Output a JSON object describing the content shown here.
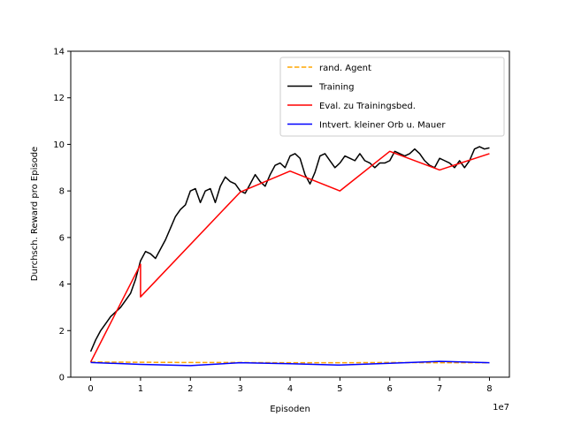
{
  "chart_data": {
    "type": "line",
    "title": "",
    "xlabel": "Episoden",
    "ylabel": "Durchsch. Reward pro Episode",
    "x_offset_label": "1e7",
    "xlim": [
      -4000000,
      84000000
    ],
    "ylim": [
      0,
      14
    ],
    "x_ticks": [
      0,
      10000000,
      20000000,
      30000000,
      40000000,
      50000000,
      60000000,
      70000000,
      80000000
    ],
    "x_tick_labels": [
      "0",
      "1",
      "2",
      "3",
      "4",
      "5",
      "6",
      "7",
      "8"
    ],
    "y_ticks": [
      0,
      2,
      4,
      6,
      8,
      10,
      12,
      14
    ],
    "y_tick_labels": [
      "0",
      "2",
      "4",
      "6",
      "8",
      "10",
      "12",
      "14"
    ],
    "grid": false,
    "legend_position": "upper-right",
    "series": [
      {
        "name": "rand. Agent",
        "color": "#ffa500",
        "style": "dashed",
        "x": [
          0,
          10000000,
          20000000,
          30000000,
          40000000,
          50000000,
          60000000,
          70000000,
          80000000
        ],
        "y": [
          0.65,
          0.64,
          0.63,
          0.63,
          0.62,
          0.62,
          0.63,
          0.62,
          0.62
        ]
      },
      {
        "name": "Training",
        "color": "#000000",
        "style": "solid",
        "x": [
          0,
          1000000,
          2000000,
          3000000,
          4000000,
          5000000,
          6000000,
          7000000,
          8000000,
          9000000,
          10000000,
          11000000,
          12000000,
          13000000,
          14000000,
          15000000,
          16000000,
          17000000,
          18000000,
          19000000,
          20000000,
          21000000,
          22000000,
          23000000,
          24000000,
          25000000,
          26000000,
          27000000,
          28000000,
          29000000,
          30000000,
          31000000,
          32000000,
          33000000,
          34000000,
          35000000,
          36000000,
          37000000,
          38000000,
          39000000,
          40000000,
          41000000,
          42000000,
          43000000,
          44000000,
          45000000,
          46000000,
          47000000,
          48000000,
          49000000,
          50000000,
          51000000,
          52000000,
          53000000,
          54000000,
          55000000,
          56000000,
          57000000,
          58000000,
          59000000,
          60000000,
          61000000,
          62000000,
          63000000,
          64000000,
          65000000,
          66000000,
          67000000,
          68000000,
          69000000,
          70000000,
          71000000,
          72000000,
          73000000,
          74000000,
          75000000,
          76000000,
          77000000,
          78000000,
          79000000,
          80000000
        ],
        "y": [
          1.1,
          1.6,
          2.0,
          2.3,
          2.6,
          2.8,
          3.0,
          3.3,
          3.6,
          4.2,
          5.0,
          5.4,
          5.3,
          5.1,
          5.5,
          5.9,
          6.4,
          6.9,
          7.2,
          7.4,
          8.0,
          8.1,
          7.5,
          8.0,
          8.1,
          7.5,
          8.2,
          8.6,
          8.4,
          8.3,
          8.0,
          7.9,
          8.3,
          8.7,
          8.4,
          8.2,
          8.7,
          9.1,
          9.2,
          9.0,
          9.5,
          9.6,
          9.4,
          8.7,
          8.3,
          8.8,
          9.5,
          9.6,
          9.3,
          9.0,
          9.2,
          9.5,
          9.4,
          9.3,
          9.6,
          9.3,
          9.2,
          9.0,
          9.2,
          9.2,
          9.3,
          9.7,
          9.6,
          9.5,
          9.6,
          9.8,
          9.6,
          9.3,
          9.1,
          9.0,
          9.4,
          9.3,
          9.2,
          9.0,
          9.3,
          9.0,
          9.3,
          9.8,
          9.9,
          9.8,
          9.85
        ]
      },
      {
        "name": "Eval. zu Trainingsbed.",
        "color": "#ff0000",
        "style": "solid",
        "x": [
          0,
          10000000,
          10000000,
          30000000,
          40000000,
          50000000,
          60000000,
          70000000,
          80000000
        ],
        "y": [
          0.65,
          4.85,
          3.45,
          7.95,
          8.85,
          8.0,
          9.7,
          8.9,
          9.6
        ]
      },
      {
        "name": "Intvert. kleiner Orb u. Mauer",
        "color": "#0000ff",
        "style": "solid",
        "x": [
          0,
          10000000,
          20000000,
          30000000,
          40000000,
          50000000,
          60000000,
          70000000,
          80000000
        ],
        "y": [
          0.63,
          0.55,
          0.5,
          0.62,
          0.58,
          0.52,
          0.6,
          0.68,
          0.62
        ]
      }
    ]
  }
}
